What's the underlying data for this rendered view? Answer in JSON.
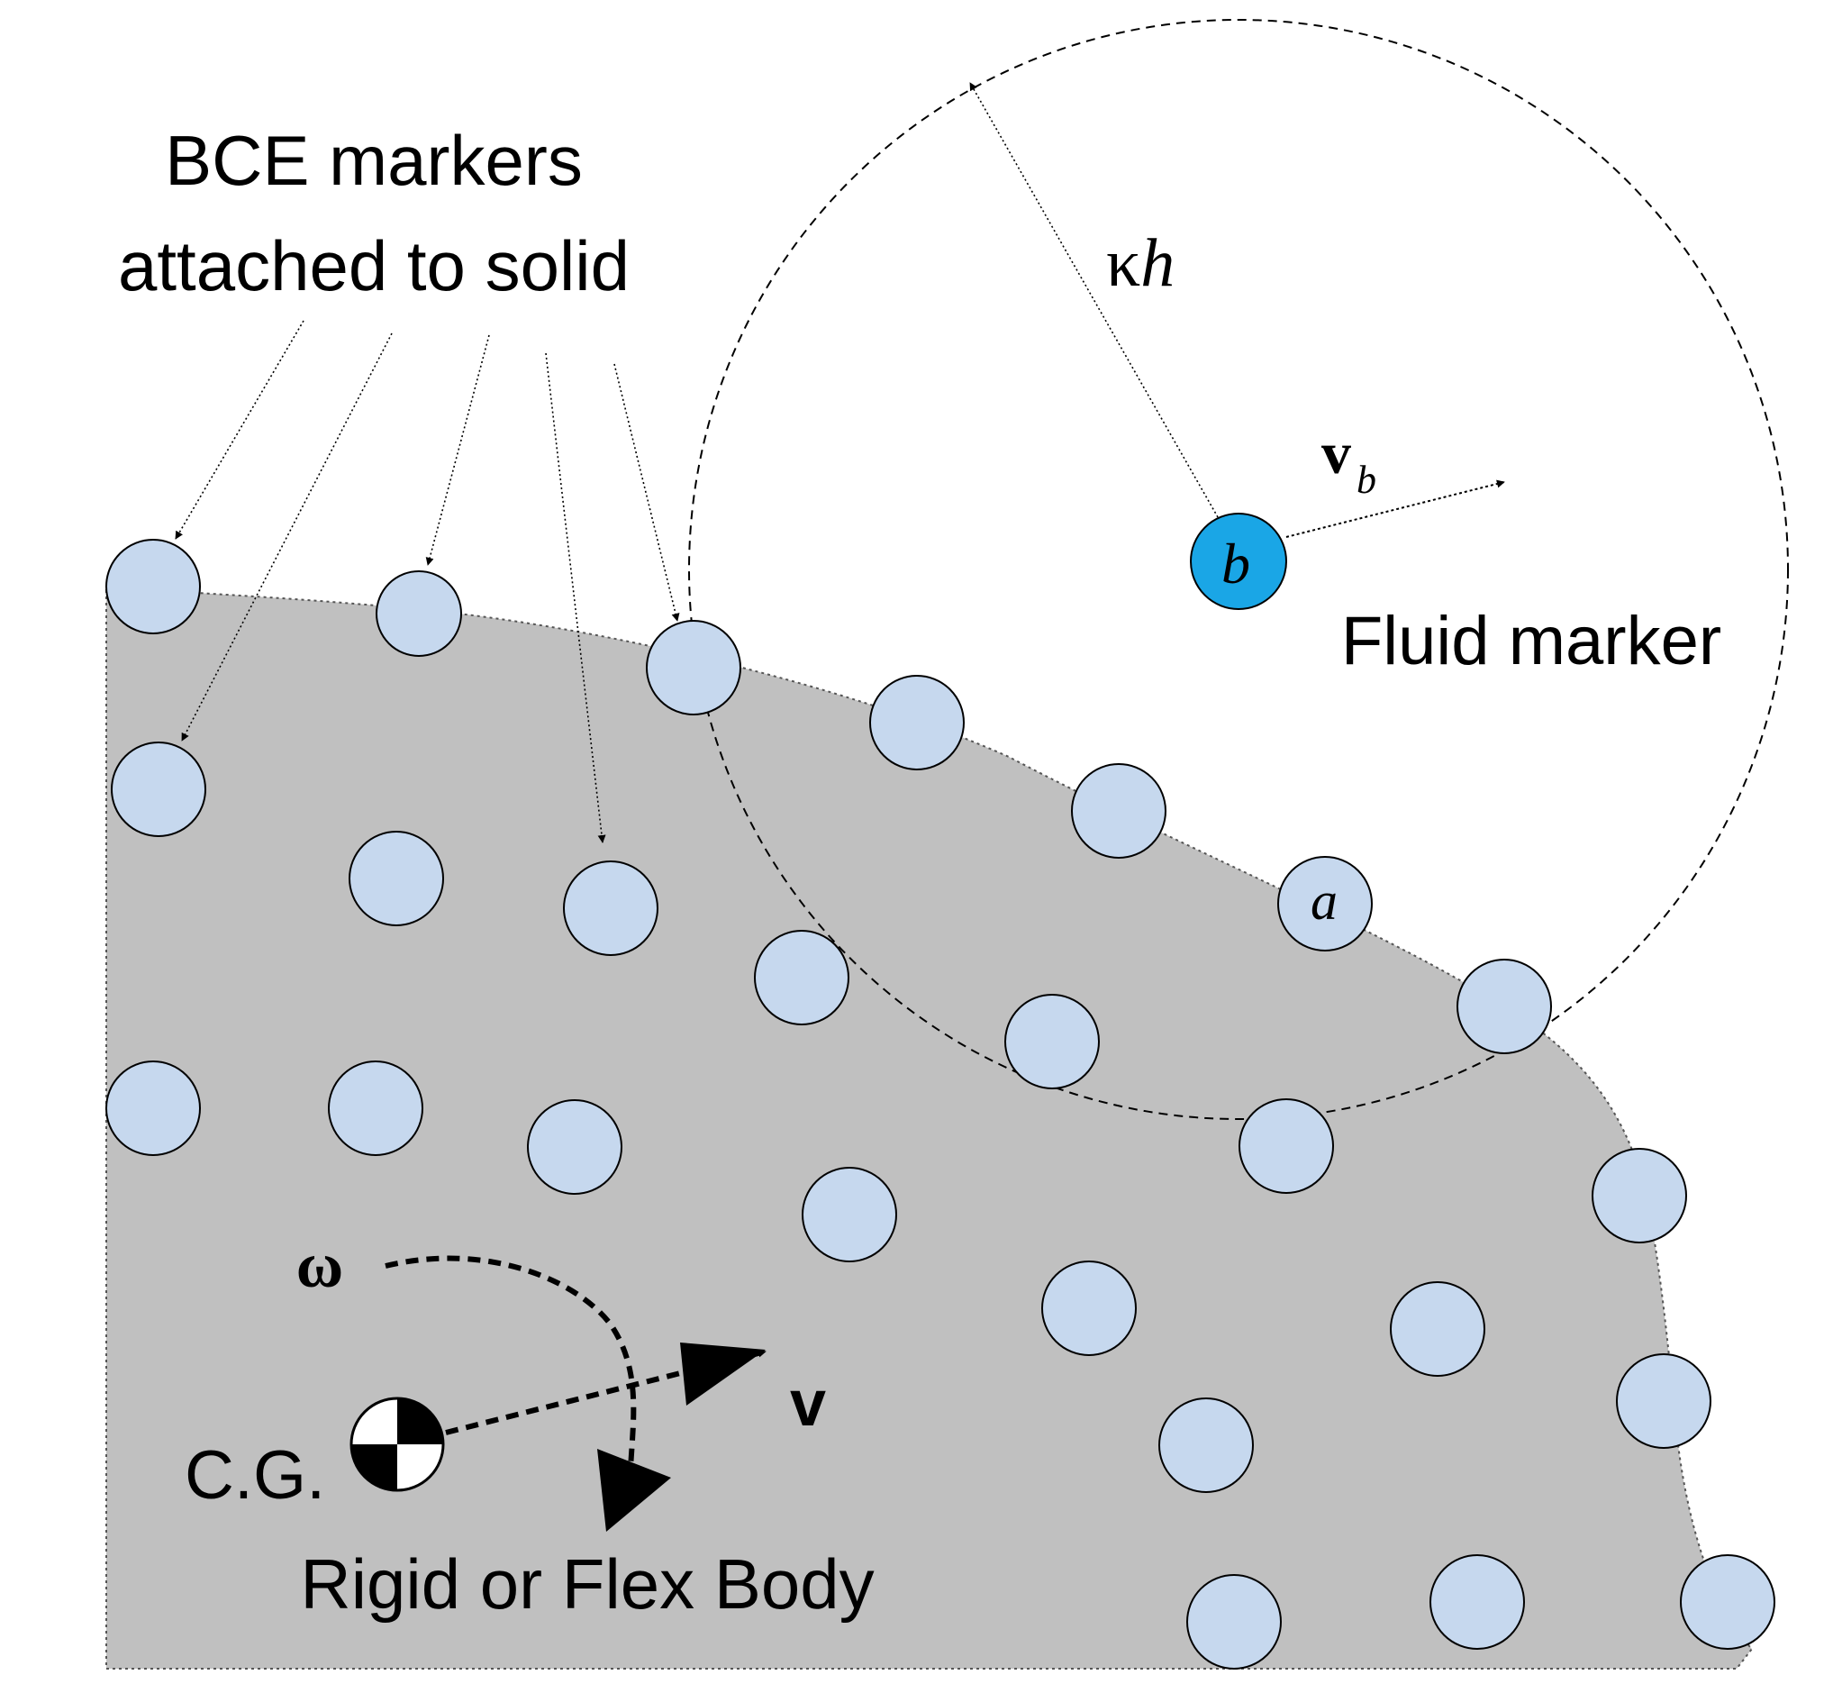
{
  "labels": {
    "bce_line1": "BCE markers",
    "bce_line2": "attached to solid",
    "kappa": "κ",
    "h": "h",
    "vb_v": "v",
    "vb_sub": "b",
    "fluid_marker": "Fluid marker",
    "marker_b": "b",
    "marker_a": "a",
    "omega": "ω",
    "v": "v",
    "cg": "C.G.",
    "body": "Rigid or Flex Body"
  },
  "colors": {
    "solid_fill": "#c0c0c0",
    "bce_marker": "#c6d8ee",
    "fluid_marker": "#1aa6e6",
    "stroke": "#000000"
  },
  "icons": {
    "cg": "center-of-gravity-symbol"
  }
}
